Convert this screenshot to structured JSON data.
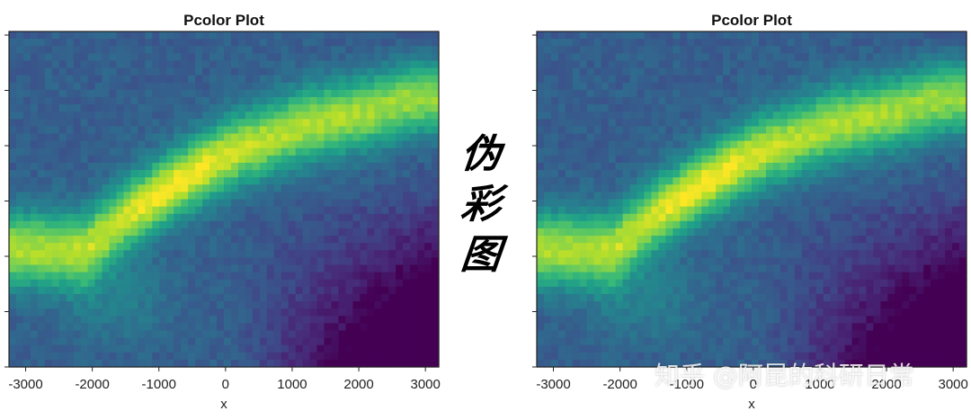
{
  "chart_data": [
    {
      "type": "heatmap",
      "title": "Pcolor Plot",
      "xlabel": "x",
      "ylabel": "",
      "xticks": [
        -3000,
        -2000,
        -1000,
        0,
        1000,
        2000,
        3000
      ],
      "xtick_labels": [
        "-3000",
        "-2000",
        "-1000",
        "0",
        "1000",
        "2000",
        "3000"
      ],
      "xlim": [
        -3250,
        3200
      ],
      "yticks_count": 7,
      "colormap": "viridis",
      "grid": false,
      "ridge_path": [
        [
          -2100,
          0.35
        ],
        [
          -1500,
          0.45
        ],
        [
          -700,
          0.55
        ],
        [
          0,
          0.63
        ],
        [
          500,
          0.67
        ],
        [
          1200,
          0.72
        ],
        [
          2100,
          0.76
        ],
        [
          2900,
          0.8
        ]
      ]
    },
    {
      "type": "heatmap",
      "title": "Pcolor Plot",
      "xlabel": "x",
      "ylabel": "",
      "xticks": [
        -3000,
        -2000,
        -1000,
        0,
        1000,
        2000,
        3000
      ],
      "xtick_labels": [
        "-3000",
        "-2000",
        "-1000",
        "0",
        "1000",
        "2000",
        "3000"
      ],
      "xlim": [
        -3250,
        3200
      ],
      "yticks_count": 7,
      "colormap": "viridis",
      "grid": false,
      "ridge_path": [
        [
          -2100,
          0.35
        ],
        [
          -1500,
          0.45
        ],
        [
          -700,
          0.55
        ],
        [
          0,
          0.63
        ],
        [
          500,
          0.67
        ],
        [
          1200,
          0.72
        ],
        [
          2100,
          0.76
        ],
        [
          2900,
          0.8
        ]
      ]
    }
  ],
  "annotation": {
    "chars": [
      "伪",
      "彩",
      "图"
    ]
  },
  "watermark": {
    "text": "知乎 @阿昆的科研日常"
  },
  "colors": {
    "low": "#440154",
    "mid": "#21918c",
    "high": "#fde725"
  }
}
